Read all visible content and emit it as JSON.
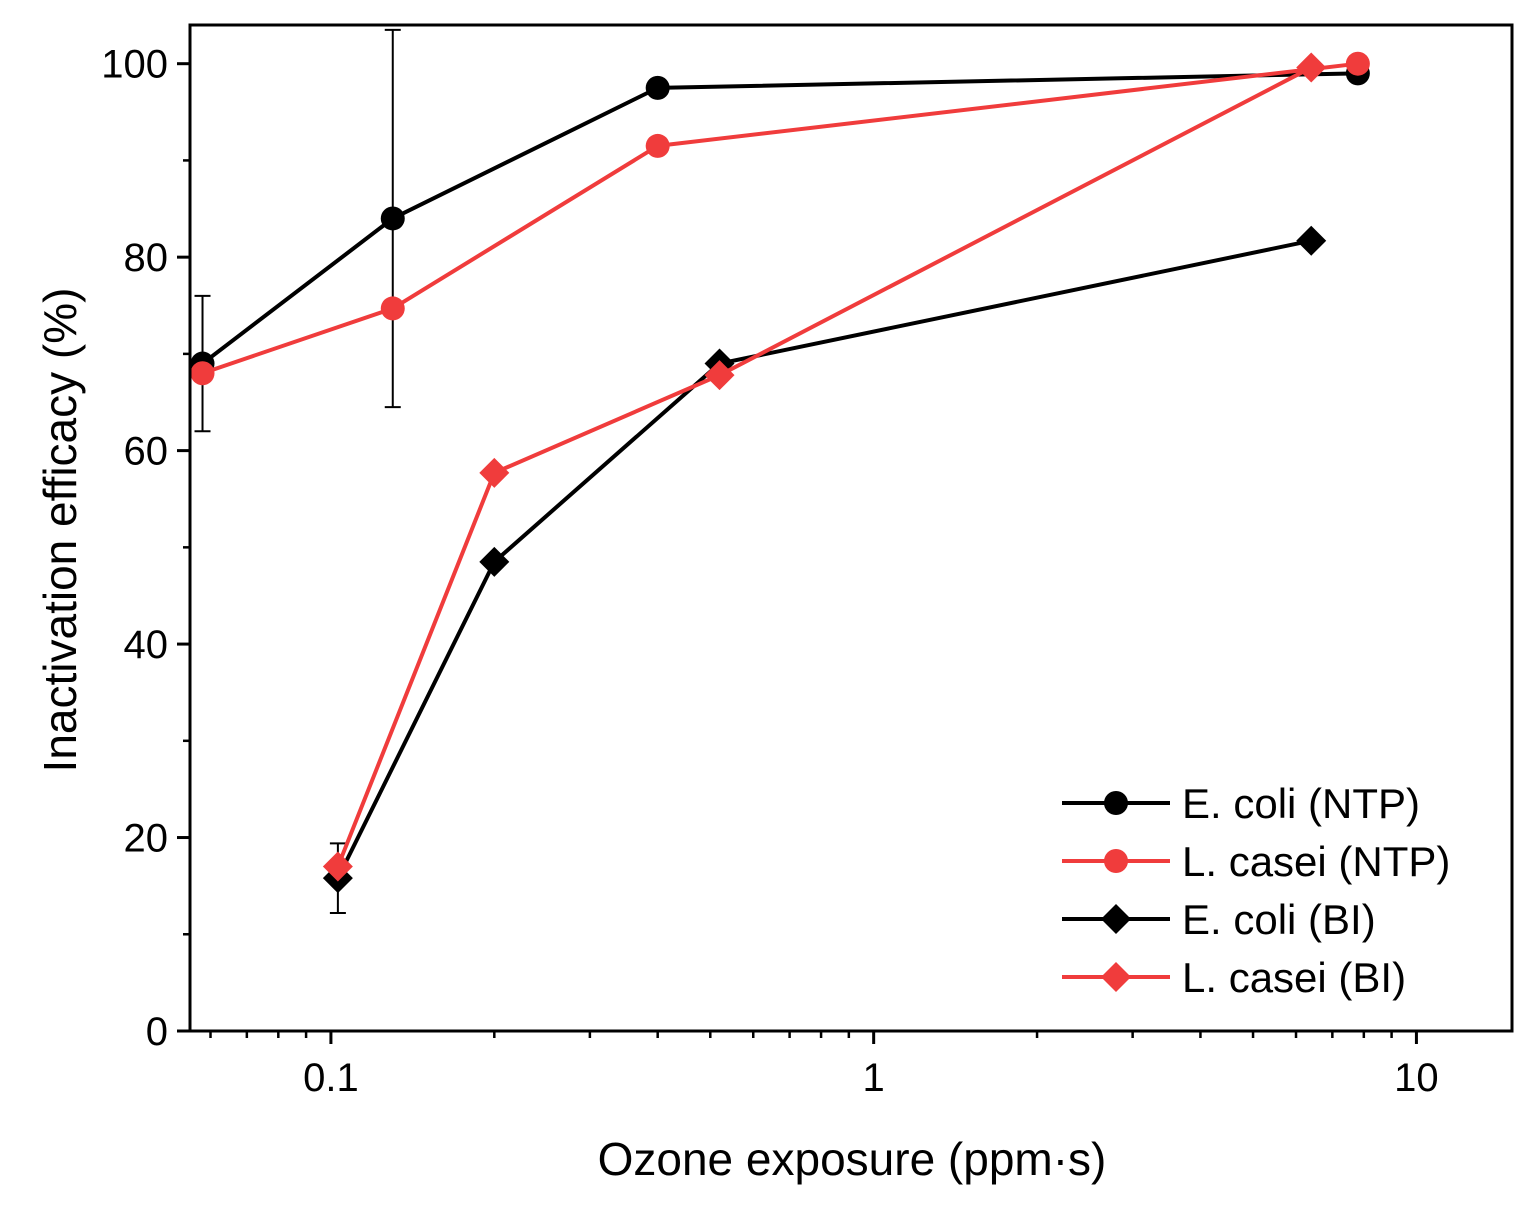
{
  "chart_data": {
    "type": "line",
    "title": "",
    "xlabel": "Ozone exposure (ppm·s)",
    "ylabel": "Inactivation efficacy (%)",
    "xscale": "log",
    "xlim": [
      0.055,
      15
    ],
    "ylim": [
      0,
      104
    ],
    "x_ticks": [
      0.1,
      1,
      10
    ],
    "x_tick_labels": [
      "0.1",
      "1",
      "10"
    ],
    "y_ticks": [
      0,
      20,
      40,
      60,
      80,
      100
    ],
    "y_tick_labels": [
      "0",
      "20",
      "40",
      "60",
      "80",
      "100"
    ],
    "legend_position": "bottom-right",
    "series": [
      {
        "name": "E. coli (NTP)",
        "color": "#000000",
        "marker": "circle",
        "x": [
          0.058,
          0.13,
          0.4,
          7.8
        ],
        "y": [
          69,
          84,
          97.5,
          99
        ],
        "error": [
          7,
          19.5,
          null,
          null
        ]
      },
      {
        "name": "L. casei (NTP)",
        "color": "#f03c3c",
        "marker": "circle",
        "x": [
          0.058,
          0.13,
          0.4,
          7.8
        ],
        "y": [
          68,
          74.7,
          91.5,
          100
        ],
        "error": [
          null,
          null,
          null,
          null
        ]
      },
      {
        "name": "E. coli (BI)",
        "color": "#000000",
        "marker": "diamond",
        "x": [
          0.103,
          0.2,
          0.52,
          6.4
        ],
        "y": [
          15.8,
          48.5,
          69,
          81.7
        ],
        "error": [
          3.6,
          null,
          null,
          null
        ]
      },
      {
        "name": "L. casei (BI)",
        "color": "#f03c3c",
        "marker": "diamond",
        "x": [
          0.103,
          0.2,
          0.52,
          6.4
        ],
        "y": [
          17,
          57.7,
          67.8,
          99.6
        ],
        "error": [
          null,
          null,
          null,
          null
        ]
      }
    ]
  }
}
